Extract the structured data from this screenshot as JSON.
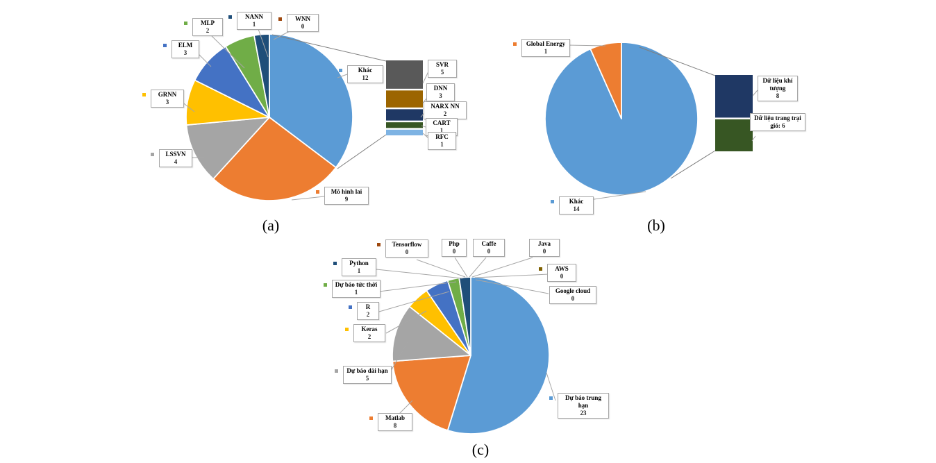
{
  "figure": {
    "background": "#ffffff",
    "description": "Three bar-of-pie statistics charts with callout labels",
    "captions": [
      "(a)",
      "(b)",
      "(c)"
    ]
  },
  "chart_data": [
    {
      "id": "a",
      "type": "pie",
      "variant": "bar-of-pie",
      "caption": "(a)",
      "legend_position": "callouts",
      "slices": [
        {
          "label": "Khác",
          "value": 12,
          "color": "#5B9BD5"
        },
        {
          "label": "Mô hình lai",
          "value": 9,
          "color": "#ED7D31"
        },
        {
          "label": "LSSVN",
          "value": 4,
          "color": "#A5A5A5"
        },
        {
          "label": "GRNN",
          "value": 3,
          "color": "#FFC000"
        },
        {
          "label": "ELM",
          "value": 3,
          "color": "#4472C4"
        },
        {
          "label": "MLP",
          "value": 2,
          "color": "#70AD47"
        },
        {
          "label": "NANN",
          "value": 1,
          "color": "#1F4E79"
        },
        {
          "label": "WNN",
          "value": 0,
          "color": "#9E480E"
        }
      ],
      "breakout_bar": {
        "source_slice": "Khác",
        "segments": [
          {
            "label": "SVR",
            "value": 5,
            "color": "#595959"
          },
          {
            "label": "DNN",
            "value": 3,
            "color": "#9C6500"
          },
          {
            "label": "NARX NN",
            "value": 2,
            "color": "#1F3864"
          },
          {
            "label": "CART",
            "value": 1,
            "color": "#375623"
          },
          {
            "label": "RFC",
            "value": 1,
            "color": "#7EB3E3"
          }
        ]
      }
    },
    {
      "id": "b",
      "type": "pie",
      "variant": "bar-of-pie",
      "caption": "(b)",
      "legend_position": "callouts",
      "slices": [
        {
          "label": "Khác",
          "value": 14,
          "color": "#5B9BD5"
        },
        {
          "label": "Global Energy",
          "value": 1,
          "color": "#ED7D31"
        }
      ],
      "breakout_bar": {
        "source_slice": "Khác",
        "segments": [
          {
            "label": "Dữ liệu khí tượng",
            "value": 8,
            "color": "#1F3864"
          },
          {
            "label": "Dữ liệu trang trại gió:",
            "value": 6,
            "color": "#375623"
          }
        ]
      }
    },
    {
      "id": "c",
      "type": "pie",
      "variant": "pie",
      "caption": "(c)",
      "legend_position": "callouts",
      "slices": [
        {
          "label": "Dự báo trung hạn",
          "value": 23,
          "color": "#5B9BD5"
        },
        {
          "label": "Matlab",
          "value": 8,
          "color": "#ED7D31"
        },
        {
          "label": "Dự báo dài hạn",
          "value": 5,
          "color": "#A5A5A5"
        },
        {
          "label": "Keras",
          "value": 2,
          "color": "#FFC000"
        },
        {
          "label": "R",
          "value": 2,
          "color": "#4472C4"
        },
        {
          "label": "Dự báo tức thời",
          "value": 1,
          "color": "#70AD47"
        },
        {
          "label": "Python",
          "value": 1,
          "color": "#1F4E79"
        },
        {
          "label": "Tensorflow",
          "value": 0,
          "color": "#9E480E"
        },
        {
          "label": "Php",
          "value": 0,
          "color": null
        },
        {
          "label": "Caffe",
          "value": 0,
          "color": null
        },
        {
          "label": "Java",
          "value": 0,
          "color": null
        },
        {
          "label": "AWS",
          "value": 0,
          "color": "#7F6000"
        },
        {
          "label": "Google cloud",
          "value": 0,
          "color": null
        }
      ]
    }
  ]
}
